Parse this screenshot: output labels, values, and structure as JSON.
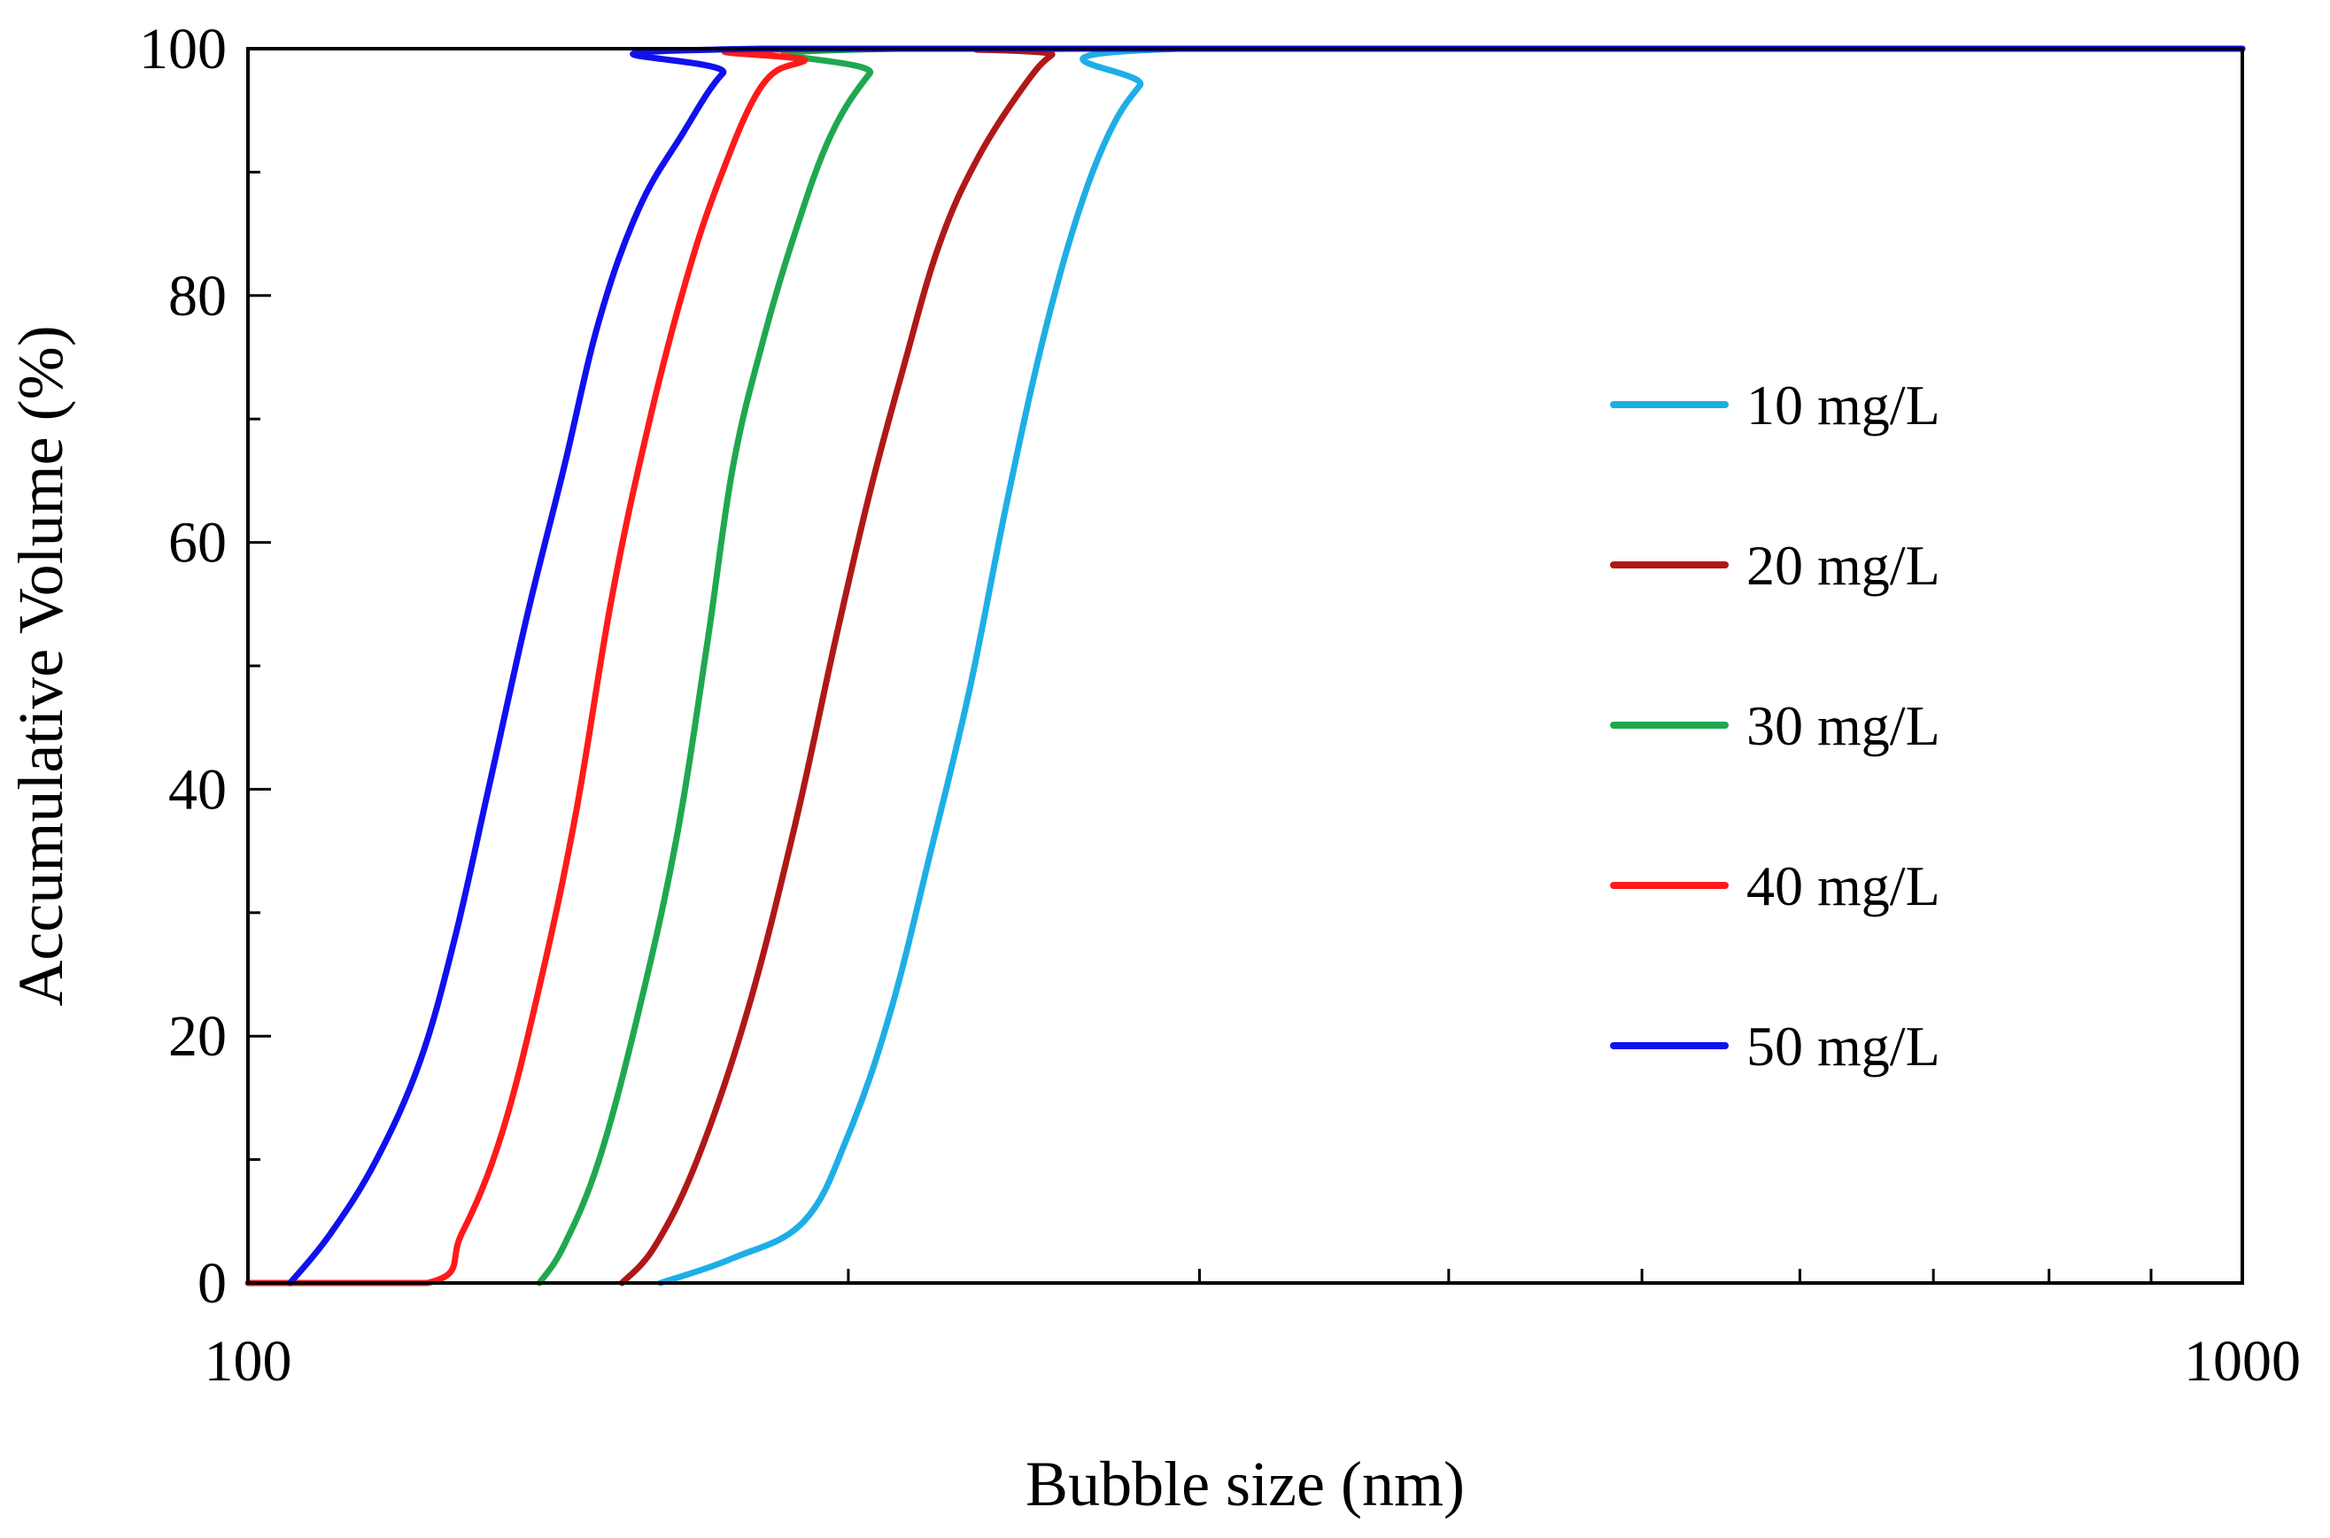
{
  "chart_data": {
    "type": "line",
    "xlabel": "Bubble size (nm)",
    "ylabel": "Accumulative Volume (%)",
    "xscale": "log",
    "xlim": [
      100,
      1000
    ],
    "ylim": [
      0,
      100
    ],
    "x_tick_labels": [
      "100",
      "1000"
    ],
    "y_tick_labels": [
      "0",
      "20",
      "40",
      "60",
      "80",
      "100"
    ],
    "y_ticks": [
      0,
      20,
      40,
      60,
      80,
      100
    ],
    "y_minor_ticks": [
      10,
      30,
      50,
      70,
      90
    ],
    "x_minor_ticks": [
      200,
      300,
      400,
      500,
      600,
      700,
      800,
      900
    ],
    "grid": false,
    "legend_position": "right",
    "series": [
      {
        "name": "10 mg/L",
        "color": "#1EAEE6",
        "points": [
          [
            161,
            0
          ],
          [
            175,
            2
          ],
          [
            190,
            5
          ],
          [
            200,
            12
          ],
          [
            210,
            22
          ],
          [
            220,
            35
          ],
          [
            230,
            48
          ],
          [
            240,
            63
          ],
          [
            250,
            76
          ],
          [
            260,
            86
          ],
          [
            270,
            93
          ],
          [
            280,
            97
          ],
          [
            293,
            100
          ],
          [
            1000,
            100
          ]
        ]
      },
      {
        "name": "20 mg/L",
        "color": "#B01818",
        "points": [
          [
            154,
            0
          ],
          [
            160,
            3
          ],
          [
            168,
            10
          ],
          [
            178,
            22
          ],
          [
            188,
            37
          ],
          [
            197,
            52
          ],
          [
            205,
            64
          ],
          [
            213,
            74
          ],
          [
            222,
            84
          ],
          [
            232,
            91
          ],
          [
            245,
            97
          ],
          [
            253,
            99.5
          ],
          [
            260,
            100
          ],
          [
            1000,
            100
          ]
        ]
      },
      {
        "name": "30 mg/L",
        "color": "#1FA84F",
        "points": [
          [
            140,
            0
          ],
          [
            144,
            3
          ],
          [
            150,
            10
          ],
          [
            157,
            22
          ],
          [
            164,
            36
          ],
          [
            170,
            52
          ],
          [
            175,
            66
          ],
          [
            181,
            76
          ],
          [
            188,
            85
          ],
          [
            196,
            93
          ],
          [
            205,
            98
          ],
          [
            212,
            100
          ],
          [
            1000,
            100
          ]
        ]
      },
      {
        "name": "40 mg/L",
        "color": "#FF1A1A",
        "points": [
          [
            100,
            0
          ],
          [
            123,
            0
          ],
          [
            128,
            4
          ],
          [
            134,
            12
          ],
          [
            140,
            24
          ],
          [
            146,
            38
          ],
          [
            152,
            55
          ],
          [
            158,
            68
          ],
          [
            165,
            80
          ],
          [
            172,
            89
          ],
          [
            181,
            97
          ],
          [
            190,
            99
          ],
          [
            200,
            100
          ],
          [
            1000,
            100
          ]
        ]
      },
      {
        "name": "50 mg/L",
        "color": "#1010F0",
        "points": [
          [
            105,
            0
          ],
          [
            110,
            4
          ],
          [
            116,
            10
          ],
          [
            122,
            18
          ],
          [
            127,
            28
          ],
          [
            132,
            40
          ],
          [
            138,
            54
          ],
          [
            144,
            66
          ],
          [
            150,
            78
          ],
          [
            157,
            87
          ],
          [
            165,
            93
          ],
          [
            173,
            98
          ],
          [
            181,
            100
          ],
          [
            1000,
            100
          ]
        ]
      }
    ]
  }
}
